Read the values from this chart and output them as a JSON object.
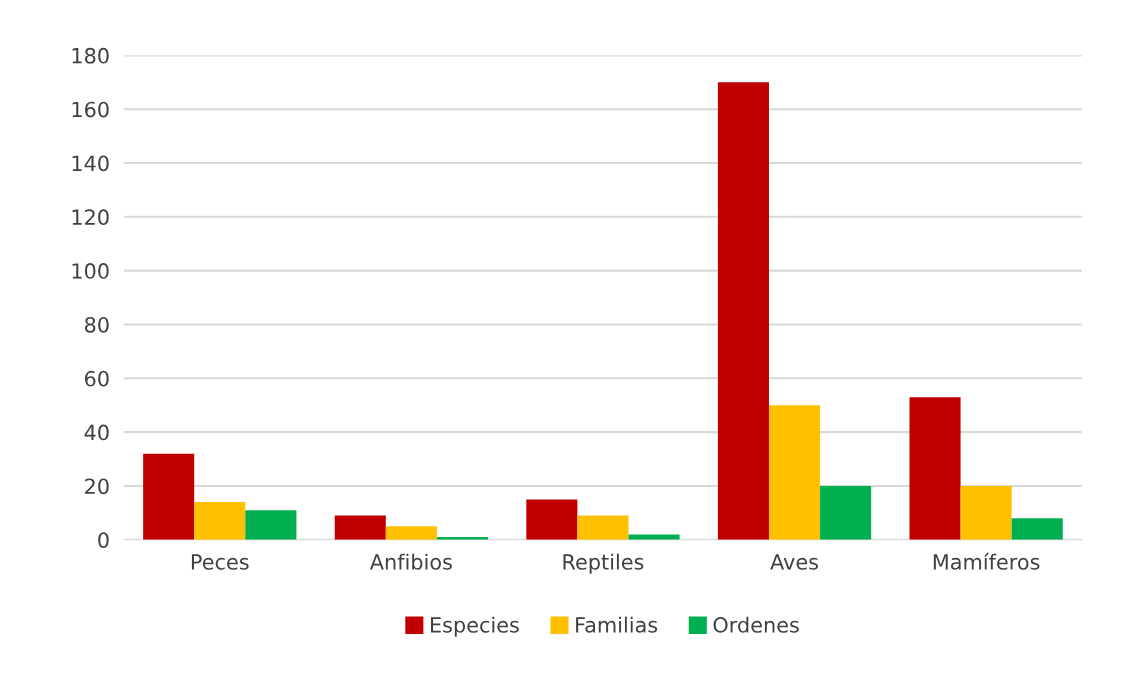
{
  "chart_data": {
    "type": "bar",
    "categories": [
      "Peces",
      "Anfibios",
      "Reptiles",
      "Aves",
      "Mamíferos"
    ],
    "series": [
      {
        "name": "Especies",
        "color": "#c00000",
        "values": [
          32,
          9,
          15,
          170,
          53
        ]
      },
      {
        "name": "Familias",
        "color": "#ffc000",
        "values": [
          14,
          5,
          9,
          50,
          20
        ]
      },
      {
        "name": "Ordenes",
        "color": "#00b050",
        "values": [
          11,
          1,
          2,
          20,
          8
        ]
      }
    ],
    "ylim": [
      0,
      180
    ],
    "yticks": [
      0,
      20,
      40,
      60,
      80,
      100,
      120,
      140,
      160,
      180
    ],
    "grid": "y",
    "legend": "bottom"
  }
}
